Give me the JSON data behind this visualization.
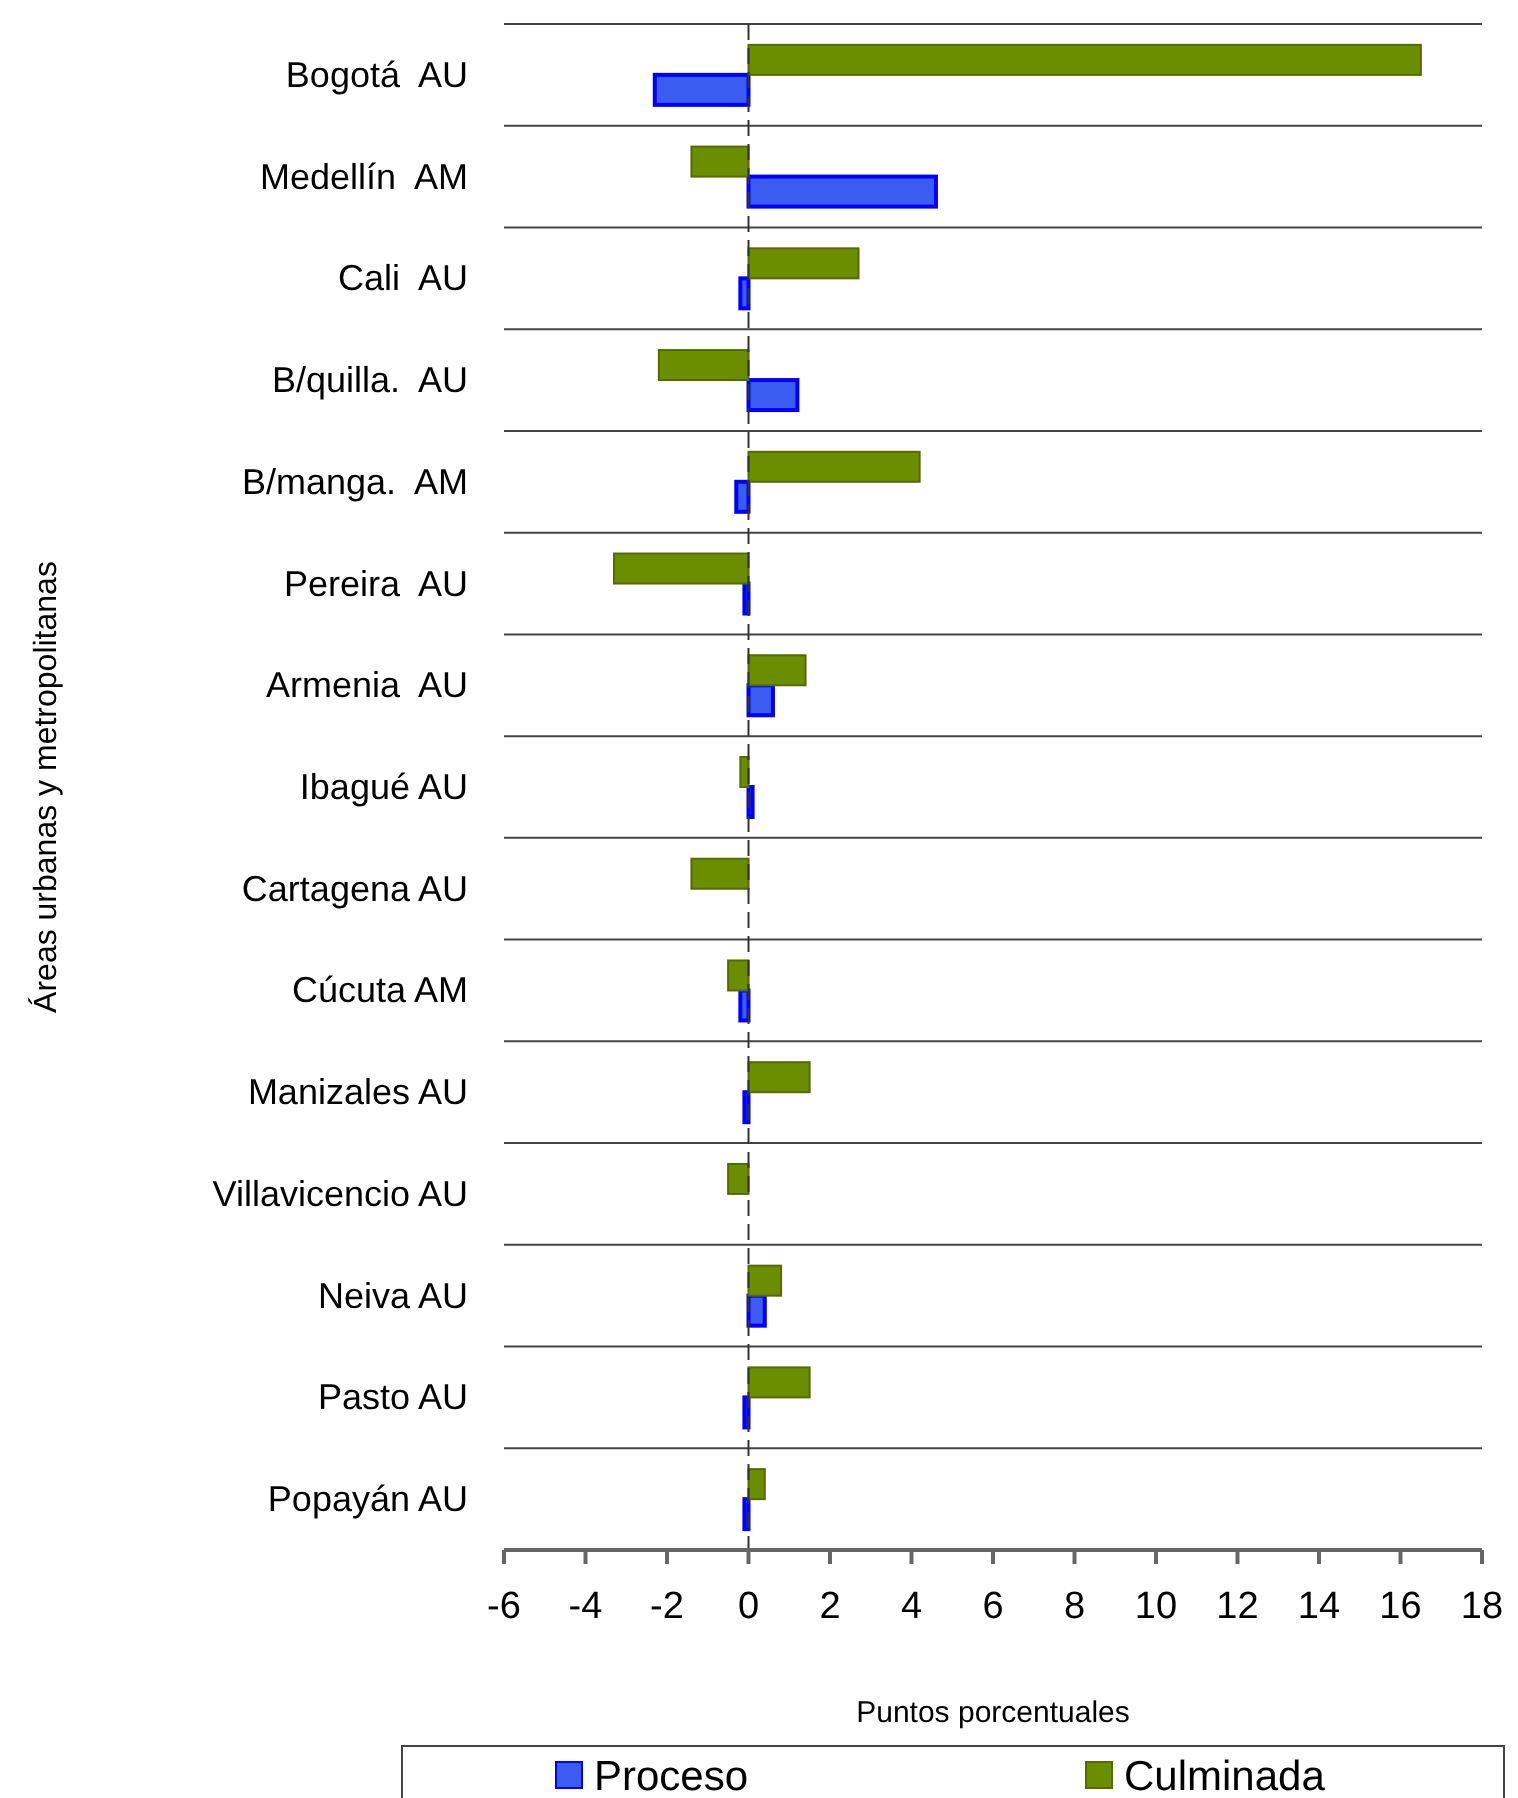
{
  "chart_data": {
    "type": "bar",
    "orientation": "horizontal",
    "xlabel": "Puntos porcentuales",
    "ylabel": "Áreas urbanas y metropolitanas",
    "categories": [
      "Bogotá  AU",
      "Medellín  AM",
      "Cali  AU",
      "B/quilla.  AU",
      "B/manga.  AM",
      "Pereira  AU",
      "Armenia  AU",
      "Ibagué AU",
      "Cartagena AU",
      "Cúcuta AM",
      "Manizales AU",
      "Villavicencio AU",
      "Neiva AU",
      "Pasto AU",
      "Popayán AU"
    ],
    "series": [
      {
        "name": "Proceso",
        "color": "#3a5cf0",
        "values": [
          -2.3,
          4.6,
          -0.2,
          1.2,
          -0.3,
          -0.1,
          0.6,
          0.1,
          null,
          -0.2,
          -0.1,
          null,
          0.4,
          -0.1,
          -0.1
        ]
      },
      {
        "name": "Culminada",
        "color": "#6b8e00",
        "values": [
          16.5,
          -1.4,
          2.7,
          -2.2,
          4.2,
          -3.3,
          1.4,
          -0.2,
          -1.4,
          -0.5,
          1.5,
          -0.5,
          0.8,
          1.5,
          0.4
        ]
      }
    ],
    "xlim": [
      -6,
      18
    ],
    "xticks": [
      -6,
      -4,
      -2,
      0,
      2,
      4,
      6,
      8,
      10,
      12,
      14,
      16,
      18
    ],
    "grid": "y",
    "legend": "bottom",
    "ref_lines": [
      {
        "axis": "x",
        "value": 0,
        "color": "#333333",
        "line_style": "dashed"
      }
    ]
  }
}
